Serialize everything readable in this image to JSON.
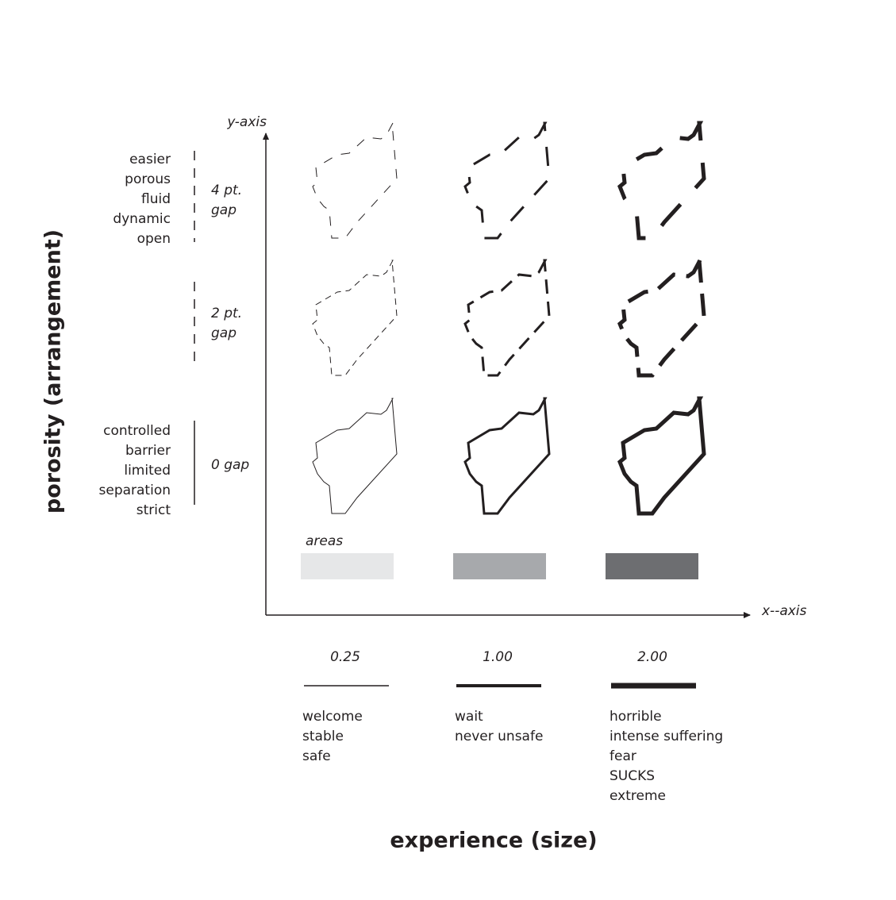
{
  "y_axis_label": "y-axis",
  "x_axis_label": "x--axis",
  "y_title": "porosity (arrangement)",
  "x_title": "experience (size)",
  "areas_label": "areas",
  "rows": [
    {
      "descriptors": [
        "easier",
        "porous",
        "fluid",
        "dynamic",
        "open"
      ],
      "gap": [
        "4 pt.",
        "gap"
      ]
    },
    {
      "descriptors": [],
      "gap": [
        "2 pt.",
        "gap"
      ]
    },
    {
      "descriptors": [
        "controlled",
        "barrier",
        "limited",
        "separation",
        "strict"
      ],
      "gap": [
        "0 gap"
      ]
    }
  ],
  "columns": [
    {
      "size": "0.25",
      "words": [
        "welcome",
        "stable",
        "safe"
      ]
    },
    {
      "size": "1.00",
      "words": [
        "wait",
        "never unsafe"
      ]
    },
    {
      "size": "2.00",
      "words": [
        "horrible",
        "intense suffering",
        "fear",
        "SUCKS",
        "extreme"
      ]
    }
  ]
}
